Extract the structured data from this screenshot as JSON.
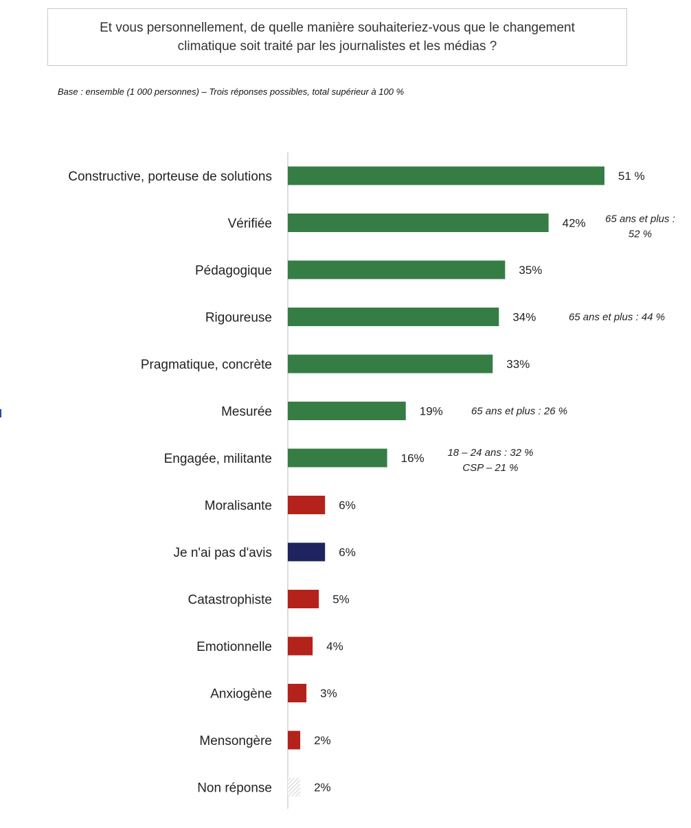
{
  "header": {
    "title": "Et vous personnellement, de quelle manière souhaiteriez-vous que le changement climatique soit traité par les journalistes et les médias ?",
    "subtitle": "Base : ensemble (1 000 personnes) – Trois réponses possibles, total supérieur à 100 %"
  },
  "colors": {
    "positive": "#367d45",
    "negative": "#b3231b",
    "neutral": "#1f2460",
    "no_answer": "#d9d9d9",
    "axis": "#d0d0d0"
  },
  "chart_data": {
    "type": "bar",
    "orientation": "horizontal",
    "categories": [
      "Constructive, porteuse de solutions",
      "Vérifiée",
      "Pédagogique",
      "Rigoureuse",
      "Pragmatique, concrète",
      "Mesurée",
      "Engagée, militante",
      "Moralisante",
      "Je n'ai pas d'avis",
      "Catastrophiste",
      "Emotionnelle",
      "Anxiogène",
      "Mensongère",
      "Non réponse"
    ],
    "values": [
      51,
      42,
      35,
      34,
      33,
      19,
      16,
      6,
      6,
      5,
      4,
      3,
      2,
      2
    ],
    "value_labels": [
      "51 %",
      "42%",
      "35%",
      "34%",
      "33%",
      "19%",
      "16%",
      "6%",
      "6%",
      "5%",
      "4%",
      "3%",
      "2%",
      "2%"
    ],
    "groups": [
      "positive",
      "positive",
      "positive",
      "positive",
      "positive",
      "positive",
      "positive",
      "negative",
      "neutral",
      "negative",
      "negative",
      "negative",
      "negative",
      "no_answer"
    ],
    "annotations": [
      {
        "index": 1,
        "lines": [
          "65 ans et plus :",
          "52 %"
        ]
      },
      {
        "index": 3,
        "lines": [
          "65 ans et plus : 44 %"
        ]
      },
      {
        "index": 5,
        "lines": [
          "65 ans et plus : 26 %"
        ]
      },
      {
        "index": 6,
        "lines": [
          "18 – 24 ans : 32 %",
          "CSP – 21 %"
        ]
      }
    ],
    "unit": "%",
    "grid": false,
    "legend": "none"
  }
}
